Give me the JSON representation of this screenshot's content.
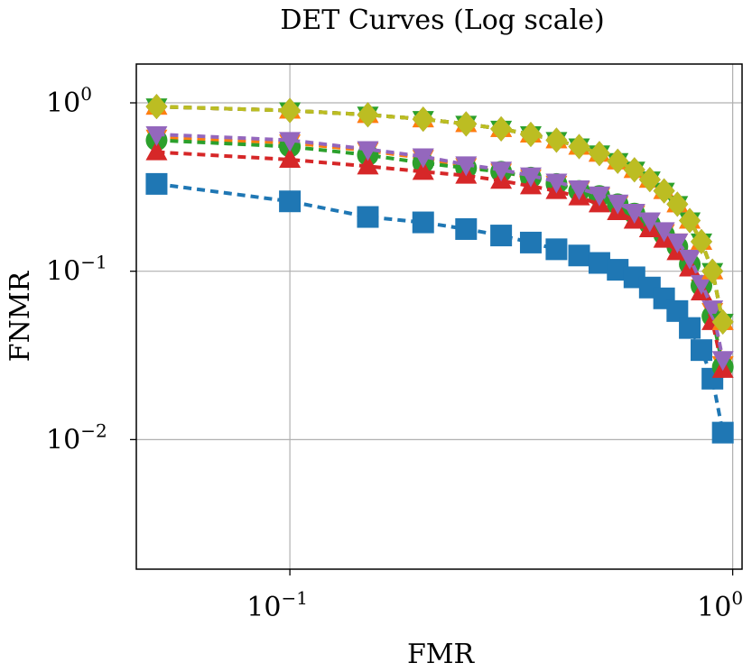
{
  "chart_data": {
    "type": "line",
    "title": "DET Curves (Log scale)",
    "xlabel": "FMR",
    "ylabel": "FNMR",
    "xscale": "log",
    "yscale": "log",
    "xlim": [
      0.045,
      1.05
    ],
    "ylim": [
      0.0017,
      1.7
    ],
    "grid": true,
    "line_style": "dashed",
    "xticks": [
      {
        "value": 0.1,
        "base": "10",
        "exp": "−1"
      },
      {
        "value": 1,
        "base": "10",
        "exp": "0"
      }
    ],
    "yticks": [
      {
        "value": 1,
        "base": "10",
        "exp": "0"
      },
      {
        "value": 0.1,
        "base": "10",
        "exp": "−1"
      },
      {
        "value": 0.01,
        "base": "10",
        "exp": "−2"
      }
    ],
    "x": [
      0.05,
      0.1,
      0.15,
      0.2,
      0.25,
      0.3,
      0.35,
      0.4,
      0.45,
      0.5,
      0.55,
      0.6,
      0.65,
      0.7,
      0.75,
      0.8,
      0.85,
      0.9,
      0.95
    ],
    "series": [
      {
        "color": "#1f77b4",
        "marker": "square",
        "values": [
          0.33,
          0.26,
          0.21,
          0.195,
          0.178,
          0.163,
          0.148,
          0.135,
          0.124,
          0.112,
          0.102,
          0.092,
          0.08,
          0.069,
          0.058,
          0.046,
          0.034,
          0.023,
          0.011
        ]
      },
      {
        "color": "#ff7f0e",
        "marker": "triangle-down",
        "values": [
          0.62,
          0.58,
          0.52,
          0.47,
          0.42,
          0.39,
          0.36,
          0.33,
          0.305,
          0.28,
          0.25,
          0.22,
          0.2,
          0.17,
          0.15,
          0.12,
          0.08,
          0.058,
          0.028
        ]
      },
      {
        "color": "#2ca02c",
        "marker": "circle",
        "values": [
          0.6,
          0.55,
          0.49,
          0.44,
          0.41,
          0.39,
          0.36,
          0.33,
          0.3,
          0.28,
          0.25,
          0.22,
          0.19,
          0.165,
          0.14,
          0.11,
          0.082,
          0.054,
          0.027
        ]
      },
      {
        "color": "#d62728",
        "marker": "triangle-up",
        "values": [
          0.51,
          0.46,
          0.42,
          0.39,
          0.37,
          0.345,
          0.32,
          0.3,
          0.275,
          0.25,
          0.225,
          0.2,
          0.178,
          0.154,
          0.13,
          0.104,
          0.075,
          0.05,
          0.026
        ]
      },
      {
        "color": "#9467bd",
        "marker": "triangle-down",
        "values": [
          0.65,
          0.6,
          0.53,
          0.48,
          0.43,
          0.4,
          0.37,
          0.34,
          0.31,
          0.285,
          0.255,
          0.225,
          0.2,
          0.175,
          0.15,
          0.12,
          0.085,
          0.06,
          0.03
        ]
      },
      {
        "color": "#8c564b",
        "marker": "diamond",
        "values": [
          0.95,
          0.9,
          0.85,
          0.8,
          0.75,
          0.7,
          0.65,
          0.6,
          0.55,
          0.5,
          0.45,
          0.4,
          0.35,
          0.3,
          0.25,
          0.2,
          0.15,
          0.1,
          0.05
        ]
      },
      {
        "color": "#e377c2",
        "marker": "triangle-up",
        "values": [
          0.95,
          0.9,
          0.85,
          0.8,
          0.75,
          0.7,
          0.65,
          0.6,
          0.55,
          0.5,
          0.45,
          0.4,
          0.35,
          0.3,
          0.25,
          0.2,
          0.15,
          0.1,
          0.05
        ]
      },
      {
        "color": "#ff7f0e",
        "marker": "triangle-up",
        "values": [
          0.95,
          0.9,
          0.85,
          0.8,
          0.75,
          0.7,
          0.65,
          0.6,
          0.55,
          0.5,
          0.45,
          0.4,
          0.35,
          0.3,
          0.25,
          0.2,
          0.15,
          0.1,
          0.05
        ]
      },
      {
        "color": "#2ca02c",
        "marker": "triangle-down",
        "values": [
          0.95,
          0.9,
          0.85,
          0.8,
          0.75,
          0.7,
          0.65,
          0.6,
          0.55,
          0.5,
          0.45,
          0.4,
          0.35,
          0.3,
          0.25,
          0.2,
          0.15,
          0.1,
          0.05
        ]
      },
      {
        "color": "#bcbd22",
        "marker": "diamond",
        "values": [
          0.95,
          0.9,
          0.85,
          0.8,
          0.75,
          0.7,
          0.65,
          0.6,
          0.55,
          0.5,
          0.45,
          0.4,
          0.35,
          0.3,
          0.25,
          0.2,
          0.15,
          0.1,
          0.05
        ]
      }
    ]
  }
}
